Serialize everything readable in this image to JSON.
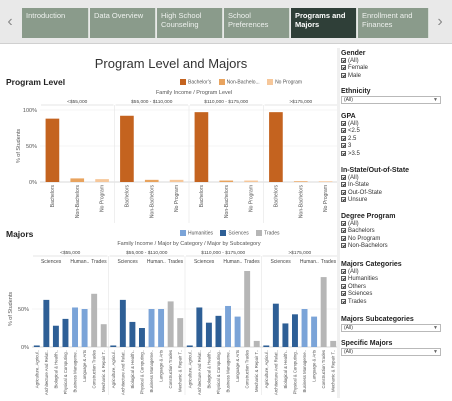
{
  "story": {
    "prev_icon": "chevron-left-icon",
    "next_icon": "chevron-right-icon",
    "points": [
      {
        "label": "Introduction",
        "active": false
      },
      {
        "label": "Data Overview",
        "active": false
      },
      {
        "label": "High School Counseling",
        "active": false
      },
      {
        "label": "School Preferences",
        "active": false
      },
      {
        "label": "Programs and Majors",
        "active": true
      },
      {
        "label": "Enrollment and Finances",
        "active": false
      }
    ]
  },
  "dashboard": {
    "title": "Program Level and Majors",
    "program_section": {
      "title": "Program Level",
      "legend": [
        {
          "label": "Bachelor's",
          "color": "#c4631f"
        },
        {
          "label": "Non-Bachelo...",
          "color": "#e8a35e"
        },
        {
          "label": "No Program",
          "color": "#f6c79a"
        }
      ],
      "subtitle": "Family Income  /  Program Level"
    },
    "majors_section": {
      "title": "Majors",
      "legend": [
        {
          "label": "Humanities",
          "color": "#7ba4d8"
        },
        {
          "label": "Sciences",
          "color": "#2e5f96"
        },
        {
          "label": "Trades",
          "color": "#b6b6b6"
        }
      ],
      "subtitle": "Family Income  /  Major by Category  /  Major by Subcategory"
    }
  },
  "chart_data": [
    {
      "type": "bar",
      "title": "Program Level",
      "ylabel": "% of Students",
      "ylim": [
        0,
        100
      ],
      "yticks": [
        "0%",
        "50%",
        "100%"
      ],
      "panels": [
        "<$55,000",
        "$55,000 - $110,000",
        "$110,000 - $175,000",
        ">$175,000"
      ],
      "categories": [
        "Bachelors",
        "Non-Bachelors",
        "No Program"
      ],
      "colors": [
        "#c4631f",
        "#e8a35e",
        "#f6c79a"
      ],
      "values": [
        [
          88,
          5,
          4
        ],
        [
          92,
          3,
          3
        ],
        [
          97,
          2,
          2
        ],
        [
          97,
          1,
          1
        ]
      ]
    },
    {
      "type": "bar",
      "title": "Majors",
      "ylabel": "% of Students",
      "ylim": [
        0,
        100
      ],
      "yticks": [
        "0%",
        "50%"
      ],
      "panels": [
        "<$55,000",
        "$55,000 - $110,000",
        "$110,000 - $175,000",
        ">$175,000"
      ],
      "groups": [
        "Sciences",
        "Human..",
        "Trades"
      ],
      "categories": [
        "Agriculture, Agricul..",
        "Architecture And Relat..",
        "Biological & Health..",
        "Physical & Computing..",
        "Business Manageme..",
        "Language & Arts",
        "Construction Trades",
        "Mechanic & Repair T.."
      ],
      "category_groups": [
        "Sciences",
        "Sciences",
        "Sciences",
        "Sciences",
        "Human..",
        "Human..",
        "Trades",
        "Trades"
      ],
      "group_colors": {
        "Sciences": "#2e5f96",
        "Human..": "#7ba4d8",
        "Trades": "#b6b6b6"
      },
      "values": [
        [
          2,
          62,
          28,
          37,
          52,
          50,
          70,
          30
        ],
        [
          2,
          62,
          33,
          25,
          50,
          50,
          60,
          38
        ],
        [
          2,
          52,
          32,
          41,
          54,
          40,
          100,
          8
        ],
        [
          2,
          57,
          31,
          43,
          50,
          40,
          92,
          8
        ]
      ]
    }
  ],
  "filters": [
    {
      "title": "Gender",
      "type": "checkbox",
      "options": [
        "(All)",
        "Female",
        "Male"
      ]
    },
    {
      "title": "Ethnicity",
      "type": "dropdown",
      "value": "(All)"
    },
    {
      "title": "GPA",
      "type": "checkbox",
      "options": [
        "(All)",
        "<2.5",
        "2.5",
        "3",
        ">3.5"
      ]
    },
    {
      "title": "In-State/Out-of-State",
      "type": "checkbox",
      "options": [
        "(All)",
        "In-State",
        "Out-Of-State",
        "Unsure"
      ]
    },
    {
      "title": "Degree Program",
      "type": "checkbox",
      "options": [
        "(All)",
        "Bachelors",
        "No Program",
        "Non-Bachelors"
      ]
    },
    {
      "title": "Majors Categories",
      "type": "checkbox",
      "options": [
        "(All)",
        "Humanities",
        "Others",
        "Sciences",
        "Trades"
      ]
    },
    {
      "title": "Majors Subcategories",
      "type": "dropdown",
      "value": "(All)"
    },
    {
      "title": "Specific Majors",
      "type": "dropdown",
      "value": "(All)"
    }
  ]
}
